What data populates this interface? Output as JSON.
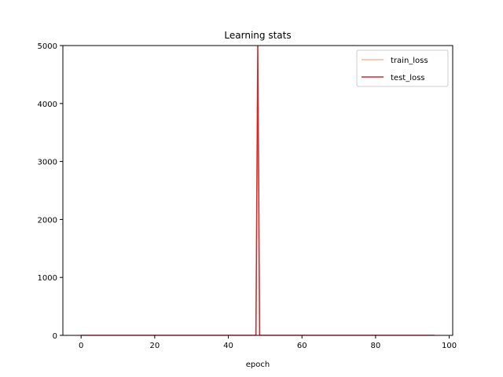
{
  "chart_data": {
    "type": "line",
    "title": "Learning stats",
    "xlabel": "epoch",
    "ylabel": "",
    "xlim": [
      -4.95,
      100.95
    ],
    "ylim": [
      0,
      5000
    ],
    "xticks": [
      0,
      20,
      40,
      60,
      80,
      100
    ],
    "yticks": [
      0,
      1000,
      2000,
      3000,
      4000,
      5000
    ],
    "grid": false,
    "legend_position": "top-right",
    "series": [
      {
        "name": "train_loss",
        "color": "#f4b8a0",
        "x": [
          0,
          47,
          47.5,
          48,
          48.5,
          49,
          96
        ],
        "y": [
          0,
          0,
          0,
          5000,
          0,
          0,
          0
        ]
      },
      {
        "name": "test_loss",
        "color": "#d62728",
        "x": [
          0,
          47,
          47.5,
          48,
          48.5,
          49,
          96
        ],
        "y": [
          0,
          0,
          0,
          5000,
          0,
          0,
          0
        ]
      }
    ]
  }
}
